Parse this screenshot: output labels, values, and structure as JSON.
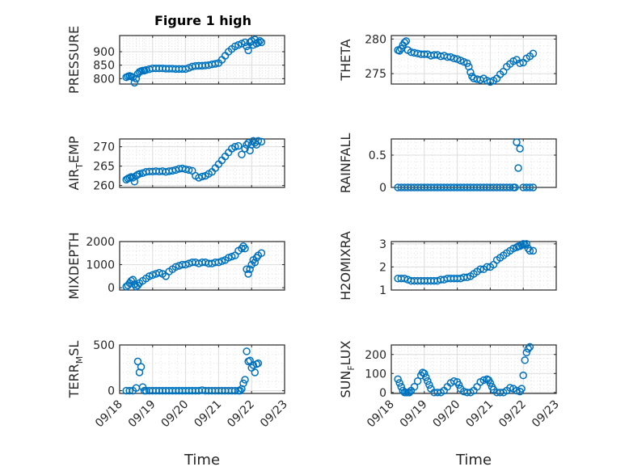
{
  "colors": {
    "marker": "#0072bd",
    "axis": "#262626",
    "grid": "#dcdcdc"
  },
  "chart_data": [
    {
      "id": "pressure",
      "type": "scatter",
      "title": "Figure 1 high",
      "ylabel": "PRESSURE",
      "xlim": [
        0,
        5
      ],
      "ylim": [
        780,
        960
      ],
      "yticks": [
        800,
        850,
        900
      ],
      "yticklabels": [
        "800",
        "850",
        "900"
      ],
      "xticks": [
        0,
        1,
        2,
        3,
        4,
        5
      ],
      "xticklabels": [],
      "xlabel": "",
      "x": [
        0.2,
        0.25,
        0.3,
        0.35,
        0.4,
        0.45,
        0.5,
        0.55,
        0.6,
        0.65,
        0.7,
        0.75,
        0.8,
        0.9,
        1.0,
        1.1,
        1.2,
        1.3,
        1.4,
        1.5,
        1.6,
        1.7,
        1.8,
        1.9,
        2.0,
        2.1,
        2.2,
        2.3,
        2.4,
        2.5,
        2.6,
        2.7,
        2.8,
        2.9,
        3.0,
        3.1,
        3.2,
        3.3,
        3.4,
        3.5,
        3.6,
        3.7,
        3.8,
        3.85,
        3.9,
        3.95,
        4.0,
        4.05,
        4.1,
        4.15,
        4.2,
        4.25,
        4.3
      ],
      "y": [
        805,
        808,
        810,
        808,
        805,
        785,
        800,
        818,
        825,
        828,
        830,
        830,
        832,
        835,
        838,
        838,
        838,
        838,
        837,
        837,
        837,
        836,
        836,
        836,
        836,
        840,
        845,
        847,
        848,
        848,
        849,
        850,
        853,
        855,
        858,
        870,
        885,
        900,
        910,
        920,
        925,
        930,
        935,
        920,
        905,
        935,
        940,
        925,
        945,
        930,
        935,
        940,
        935
      ]
    },
    {
      "id": "theta",
      "type": "scatter",
      "title": "",
      "ylabel": "THETA",
      "xlim": [
        0,
        5
      ],
      "ylim": [
        273.5,
        280.5
      ],
      "yticks": [
        275,
        280
      ],
      "yticklabels": [
        "275",
        "280"
      ],
      "xticks": [
        0,
        1,
        2,
        3,
        4,
        5
      ],
      "xticklabels": [],
      "xlabel": "",
      "x": [
        0.2,
        0.25,
        0.3,
        0.35,
        0.4,
        0.45,
        0.5,
        0.6,
        0.7,
        0.8,
        0.9,
        1.0,
        1.1,
        1.2,
        1.3,
        1.4,
        1.5,
        1.6,
        1.7,
        1.8,
        1.9,
        2.0,
        2.1,
        2.2,
        2.3,
        2.35,
        2.4,
        2.45,
        2.5,
        2.6,
        2.7,
        2.8,
        2.9,
        3.0,
        3.1,
        3.2,
        3.3,
        3.4,
        3.5,
        3.6,
        3.7,
        3.8,
        3.9,
        4.0,
        4.1,
        4.2,
        4.3
      ],
      "y": [
        278.4,
        278.3,
        278.6,
        279.1,
        279.5,
        279.7,
        278.4,
        278.1,
        278.0,
        277.9,
        277.8,
        277.8,
        277.8,
        277.6,
        277.7,
        277.7,
        277.5,
        277.6,
        277.4,
        277.4,
        277.2,
        277.1,
        276.9,
        276.7,
        276.5,
        276.0,
        275.2,
        274.6,
        274.3,
        274.2,
        274.1,
        274.3,
        274.0,
        273.8,
        274.0,
        274.3,
        274.9,
        275.3,
        276.0,
        276.4,
        276.8,
        277.0,
        276.5,
        276.6,
        277.2,
        277.5,
        277.9
      ]
    },
    {
      "id": "air_temp",
      "type": "scatter",
      "title": "",
      "ylabel": "AIR_TEMP",
      "xlim": [
        0,
        5
      ],
      "ylim": [
        259.5,
        272
      ],
      "yticks": [
        260,
        265,
        270
      ],
      "yticklabels": [
        "260",
        "265",
        "270"
      ],
      "xticks": [
        0,
        1,
        2,
        3,
        4,
        5
      ],
      "xticklabels": [],
      "xlabel": "",
      "x": [
        0.2,
        0.25,
        0.3,
        0.35,
        0.4,
        0.45,
        0.5,
        0.55,
        0.6,
        0.7,
        0.8,
        0.9,
        1.0,
        1.1,
        1.2,
        1.3,
        1.4,
        1.5,
        1.6,
        1.7,
        1.8,
        1.9,
        2.0,
        2.1,
        2.2,
        2.3,
        2.4,
        2.5,
        2.6,
        2.7,
        2.8,
        2.9,
        3.0,
        3.1,
        3.2,
        3.3,
        3.4,
        3.5,
        3.6,
        3.7,
        3.8,
        3.85,
        3.9,
        3.95,
        4.0,
        4.05,
        4.1,
        4.15,
        4.2,
        4.3
      ],
      "y": [
        261.5,
        261.8,
        262.0,
        262.2,
        262.0,
        261.0,
        262.5,
        262.8,
        263.0,
        263.2,
        263.5,
        263.6,
        263.6,
        263.7,
        263.6,
        263.7,
        263.5,
        263.7,
        263.8,
        264.0,
        264.3,
        264.4,
        264.2,
        264.0,
        263.8,
        262.5,
        262.0,
        262.3,
        262.5,
        263.0,
        263.5,
        264.5,
        265.5,
        266.5,
        267.5,
        268.5,
        269.5,
        270.0,
        270.2,
        268.0,
        269.5,
        270.5,
        271.0,
        269.0,
        270.5,
        271.5,
        271.0,
        270.5,
        271.5,
        271.3
      ]
    },
    {
      "id": "rainfall",
      "type": "scatter",
      "title": "",
      "ylabel": "RAINFALL",
      "xlim": [
        0,
        5
      ],
      "ylim": [
        0,
        0.75
      ],
      "yticks": [
        0,
        0.5
      ],
      "yticklabels": [
        "0",
        "0.5"
      ],
      "xticks": [
        0,
        1,
        2,
        3,
        4,
        5
      ],
      "xticklabels": [],
      "xlabel": "",
      "x": [
        0.2,
        0.3,
        0.4,
        0.5,
        0.6,
        0.7,
        0.8,
        0.9,
        1.0,
        1.1,
        1.2,
        1.3,
        1.4,
        1.5,
        1.6,
        1.7,
        1.8,
        1.9,
        2.0,
        2.1,
        2.2,
        2.3,
        2.4,
        2.5,
        2.6,
        2.7,
        2.8,
        2.9,
        3.0,
        3.1,
        3.2,
        3.3,
        3.4,
        3.5,
        3.6,
        3.7,
        3.75,
        3.8,
        3.85,
        3.9,
        4.0,
        4.1,
        4.2,
        4.3
      ],
      "y": [
        0,
        0,
        0,
        0,
        0,
        0,
        0,
        0,
        0,
        0,
        0,
        0,
        0,
        0,
        0,
        0,
        0,
        0,
        0,
        0,
        0,
        0,
        0,
        0,
        0,
        0,
        0,
        0,
        0,
        0,
        0,
        0,
        0,
        0,
        0,
        0,
        0,
        0.7,
        0.3,
        0.6,
        0,
        0,
        0,
        0
      ]
    },
    {
      "id": "mixdepth",
      "type": "scatter",
      "title": "",
      "ylabel": "MIXDEPTH",
      "xlim": [
        0,
        5
      ],
      "ylim": [
        -100,
        2000
      ],
      "yticks": [
        0,
        1000,
        2000
      ],
      "yticklabels": [
        "0",
        "1000",
        "2000"
      ],
      "xticks": [
        0,
        1,
        2,
        3,
        4,
        5
      ],
      "xticklabels": [],
      "xlabel": "",
      "x": [
        0.2,
        0.25,
        0.3,
        0.35,
        0.4,
        0.45,
        0.5,
        0.55,
        0.6,
        0.7,
        0.8,
        0.9,
        1.0,
        1.1,
        1.2,
        1.3,
        1.4,
        1.5,
        1.6,
        1.7,
        1.8,
        1.9,
        2.0,
        2.1,
        2.2,
        2.3,
        2.4,
        2.5,
        2.6,
        2.7,
        2.8,
        2.9,
        3.0,
        3.1,
        3.2,
        3.3,
        3.4,
        3.5,
        3.6,
        3.7,
        3.75,
        3.8,
        3.85,
        3.9,
        3.95,
        4.0,
        4.05,
        4.1,
        4.15,
        4.2,
        4.3
      ],
      "y": [
        50,
        100,
        200,
        300,
        350,
        150,
        50,
        100,
        200,
        300,
        400,
        500,
        550,
        600,
        650,
        600,
        500,
        700,
        800,
        900,
        950,
        1000,
        1000,
        1050,
        1100,
        1100,
        1050,
        1100,
        1100,
        1050,
        1050,
        1100,
        1100,
        1150,
        1200,
        1300,
        1350,
        1400,
        1600,
        1700,
        1800,
        1700,
        800,
        600,
        800,
        1000,
        1200,
        1100,
        1300,
        1400,
        1500
      ]
    },
    {
      "id": "h2omixra",
      "type": "scatter",
      "title": "",
      "ylabel": "H2OMIXRA",
      "xlim": [
        0,
        5
      ],
      "ylim": [
        1,
        3.1
      ],
      "yticks": [
        1,
        2,
        3
      ],
      "yticklabels": [
        "1",
        "2",
        "3"
      ],
      "xticks": [
        0,
        1,
        2,
        3,
        4,
        5
      ],
      "xticklabels": [],
      "xlabel": "",
      "x": [
        0.2,
        0.3,
        0.4,
        0.5,
        0.6,
        0.7,
        0.8,
        0.9,
        1.0,
        1.1,
        1.2,
        1.3,
        1.4,
        1.5,
        1.6,
        1.7,
        1.8,
        1.9,
        2.0,
        2.1,
        2.2,
        2.3,
        2.4,
        2.5,
        2.6,
        2.7,
        2.8,
        2.9,
        3.0,
        3.1,
        3.2,
        3.3,
        3.4,
        3.5,
        3.6,
        3.7,
        3.8,
        3.85,
        3.9,
        3.95,
        4.0,
        4.05,
        4.1,
        4.15,
        4.2,
        4.3
      ],
      "y": [
        1.5,
        1.5,
        1.5,
        1.45,
        1.4,
        1.4,
        1.4,
        1.4,
        1.4,
        1.4,
        1.4,
        1.4,
        1.4,
        1.45,
        1.45,
        1.5,
        1.5,
        1.5,
        1.5,
        1.5,
        1.55,
        1.55,
        1.6,
        1.7,
        1.8,
        1.9,
        1.9,
        2.0,
        2.0,
        2.1,
        2.3,
        2.4,
        2.5,
        2.6,
        2.7,
        2.8,
        2.85,
        2.9,
        2.9,
        2.95,
        3.0,
        2.95,
        3.0,
        2.8,
        2.7,
        2.7
      ]
    },
    {
      "id": "terr_msl",
      "type": "scatter",
      "title": "",
      "ylabel": "TERR_MSL",
      "xlim": [
        0,
        5
      ],
      "ylim": [
        -30,
        500
      ],
      "yticks": [
        0,
        500
      ],
      "yticklabels": [
        "0",
        "500"
      ],
      "xticks": [
        0,
        1,
        2,
        3,
        4,
        5
      ],
      "xticklabels": [
        "09/18",
        "09/19",
        "09/20",
        "09/21",
        "09/22",
        "09/23"
      ],
      "xlabel": "Time",
      "x": [
        0.2,
        0.3,
        0.4,
        0.5,
        0.55,
        0.6,
        0.65,
        0.7,
        0.75,
        0.8,
        0.9,
        1.0,
        1.1,
        1.2,
        1.3,
        1.4,
        1.5,
        1.6,
        1.7,
        1.8,
        1.9,
        2.0,
        2.1,
        2.2,
        2.3,
        2.4,
        2.5,
        2.6,
        2.7,
        2.8,
        2.9,
        3.0,
        3.1,
        3.2,
        3.3,
        3.4,
        3.5,
        3.6,
        3.65,
        3.7,
        3.75,
        3.8,
        3.85,
        3.9,
        3.95,
        4.0,
        4.05,
        4.1,
        4.15,
        4.2
      ],
      "y": [
        0,
        0,
        0,
        30,
        320,
        200,
        260,
        40,
        0,
        0,
        0,
        0,
        0,
        0,
        0,
        0,
        0,
        0,
        0,
        0,
        0,
        0,
        0,
        0,
        0,
        0,
        5,
        0,
        0,
        0,
        0,
        0,
        0,
        0,
        0,
        0,
        0,
        0,
        0,
        20,
        80,
        120,
        430,
        320,
        330,
        250,
        280,
        200,
        290,
        300
      ]
    },
    {
      "id": "sun_flux",
      "type": "scatter",
      "title": "",
      "ylabel": "SUN_FLUX",
      "xlim": [
        0,
        5
      ],
      "ylim": [
        -5,
        250
      ],
      "yticks": [
        0,
        100,
        200
      ],
      "yticklabels": [
        "0",
        "100",
        "200"
      ],
      "xticks": [
        0,
        1,
        2,
        3,
        4,
        5
      ],
      "xticklabels": [
        "09/18",
        "09/19",
        "09/20",
        "09/21",
        "09/22",
        "09/23"
      ],
      "xlabel": "Time",
      "x": [
        0.2,
        0.25,
        0.3,
        0.35,
        0.4,
        0.45,
        0.5,
        0.55,
        0.6,
        0.7,
        0.8,
        0.9,
        0.95,
        1.0,
        1.05,
        1.1,
        1.15,
        1.2,
        1.3,
        1.4,
        1.5,
        1.6,
        1.7,
        1.8,
        1.9,
        2.0,
        2.05,
        2.1,
        2.2,
        2.3,
        2.4,
        2.5,
        2.6,
        2.7,
        2.8,
        2.9,
        2.95,
        3.0,
        3.05,
        3.1,
        3.2,
        3.3,
        3.4,
        3.5,
        3.6,
        3.7,
        3.8,
        3.9,
        3.95,
        4.0,
        4.05,
        4.1,
        4.15,
        4.2
      ],
      "y": [
        70,
        50,
        30,
        10,
        0,
        0,
        0,
        0,
        10,
        30,
        60,
        90,
        105,
        100,
        80,
        60,
        40,
        20,
        0,
        0,
        0,
        10,
        30,
        50,
        60,
        55,
        40,
        20,
        5,
        0,
        0,
        10,
        30,
        55,
        65,
        70,
        65,
        50,
        30,
        15,
        0,
        0,
        0,
        10,
        25,
        20,
        10,
        5,
        20,
        90,
        170,
        210,
        230,
        240
      ]
    }
  ]
}
